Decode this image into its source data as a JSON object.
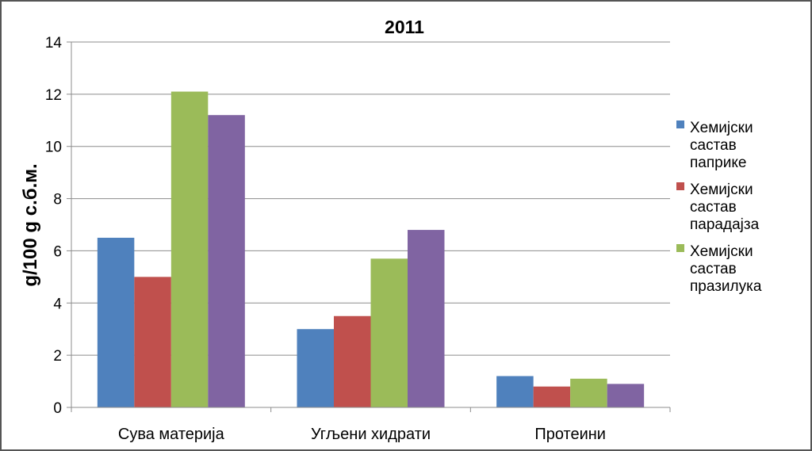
{
  "chart_data": {
    "type": "bar",
    "title": "2011",
    "xlabel": "",
    "ylabel": "g/100 g с.б.м.",
    "ylim": [
      0,
      14
    ],
    "yticks": [
      0,
      2,
      4,
      6,
      8,
      10,
      12,
      14
    ],
    "grid": true,
    "legend_position": "right",
    "categories": [
      "Сува материја",
      "Угљени хидрати",
      "Протеини"
    ],
    "series": [
      {
        "name": "Хемијски састав паприке",
        "legend_lines": [
          "Хемијски",
          "састав",
          "паприке"
        ],
        "color": "#4F81BD",
        "values": [
          6.5,
          3.0,
          1.2
        ]
      },
      {
        "name": "Хемијски састав парадајза",
        "legend_lines": [
          "Хемијски",
          "састав",
          "парадајза"
        ],
        "color": "#C0504D",
        "values": [
          5.0,
          3.5,
          0.8
        ]
      },
      {
        "name": "Хемијски састав празилука",
        "legend_lines": [
          "Хемијски",
          "састав",
          "празилука"
        ],
        "color": "#9BBB59",
        "values": [
          12.1,
          5.7,
          1.1
        ]
      },
      {
        "name": "",
        "legend_lines": [],
        "color": "#8064A2",
        "values": [
          11.2,
          6.8,
          0.9
        ]
      }
    ]
  }
}
